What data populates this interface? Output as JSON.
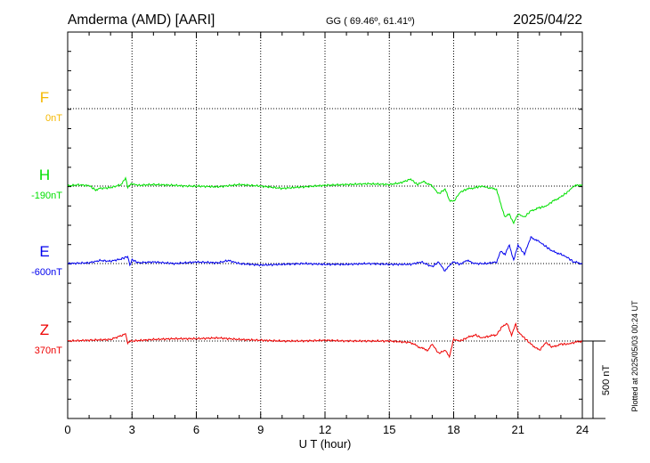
{
  "header": {
    "station": "Amderma (AMD)  [AARI]",
    "coords": "GG ( 69.46º,  61.41º)",
    "date": "2025/04/22"
  },
  "footer": {
    "plotted": "Plotted at 2025/05/03 00:24 UT"
  },
  "colors": {
    "F": "#f5b800",
    "H": "#00e000",
    "E": "#0000ee",
    "Z": "#ee0000",
    "axis": "#000000"
  },
  "chart_data": {
    "type": "line",
    "xlabel": "U T (hour)",
    "xlim": [
      0,
      24
    ],
    "x_ticks": [
      "0",
      "3",
      "6",
      "9",
      "12",
      "15",
      "18",
      "21",
      "24"
    ],
    "scale_bar": {
      "value": 500,
      "label": "500 nT"
    },
    "series": [
      {
        "name": "F",
        "baseline_label": "0nT",
        "color": "#f5b800",
        "x": [],
        "y": []
      },
      {
        "name": "H",
        "baseline_label": "-190nT",
        "color": "#00e000",
        "x": [
          0,
          0.5,
          1,
          1.3,
          1.5,
          2,
          2.5,
          2.7,
          2.8,
          3,
          3.3,
          4,
          5,
          5.5,
          6,
          7,
          8,
          9,
          10,
          11,
          12,
          13,
          14,
          15,
          15.5,
          16,
          16.3,
          16.6,
          17,
          17.3,
          17.6,
          17.8,
          18,
          18.3,
          18.6,
          19,
          19.3,
          19.6,
          20,
          20.2,
          20.4,
          20.6,
          20.8,
          21,
          21.3,
          21.6,
          22,
          22.3,
          22.6,
          23,
          23.3,
          23.6,
          24
        ],
        "y": [
          2,
          8,
          3,
          -25,
          -15,
          -10,
          10,
          50,
          -5,
          15,
          5,
          10,
          5,
          0,
          0,
          -5,
          10,
          0,
          -15,
          -5,
          5,
          10,
          15,
          10,
          20,
          45,
          10,
          30,
          0,
          -50,
          -20,
          -90,
          -100,
          -40,
          -20,
          -10,
          0,
          -10,
          -20,
          -120,
          -200,
          -180,
          -240,
          -180,
          -200,
          -160,
          -140,
          -130,
          -100,
          -70,
          -40,
          0,
          10
        ]
      },
      {
        "name": "E",
        "baseline_label": "-600nT",
        "color": "#0000ee",
        "x": [
          0,
          1,
          1.5,
          2,
          2.5,
          2.8,
          2.9,
          3,
          3.3,
          4,
          5,
          6,
          7,
          7.5,
          8,
          9,
          10,
          11,
          12,
          13,
          14,
          15,
          16,
          16.5,
          17,
          17.3,
          17.6,
          17.8,
          18,
          18.3,
          18.6,
          19,
          19.5,
          20,
          20.2,
          20.4,
          20.6,
          20.8,
          21,
          21.3,
          21.6,
          22,
          22.3,
          22.6,
          23,
          23.3,
          23.6,
          24
        ],
        "y": [
          0,
          5,
          20,
          15,
          30,
          45,
          -10,
          25,
          5,
          10,
          0,
          10,
          5,
          20,
          0,
          -10,
          -5,
          0,
          -5,
          -5,
          0,
          -5,
          -5,
          10,
          -20,
          10,
          -50,
          -10,
          10,
          -5,
          20,
          0,
          0,
          10,
          80,
          60,
          120,
          20,
          120,
          60,
          170,
          140,
          110,
          80,
          60,
          40,
          10,
          0
        ]
      },
      {
        "name": "Z",
        "baseline_label": "370nT",
        "color": "#ee0000",
        "x": [
          0,
          1,
          2,
          2.7,
          2.8,
          3,
          3.5,
          4,
          5,
          6,
          7,
          8,
          9,
          10,
          11,
          12,
          13,
          14,
          15,
          16,
          16.4,
          16.8,
          17,
          17.3,
          17.6,
          17.8,
          18,
          18.3,
          18.6,
          19,
          19.3,
          19.6,
          20,
          20.3,
          20.5,
          20.7,
          20.9,
          21,
          21.3,
          21.6,
          22,
          22.3,
          22.6,
          23,
          23.3,
          23.6,
          24
        ],
        "y": [
          0,
          5,
          10,
          45,
          -10,
          0,
          5,
          10,
          15,
          15,
          20,
          10,
          5,
          0,
          0,
          5,
          0,
          0,
          0,
          -10,
          -40,
          -60,
          -20,
          -80,
          -60,
          -100,
          10,
          0,
          20,
          40,
          20,
          30,
          40,
          100,
          110,
          40,
          110,
          60,
          20,
          -20,
          -60,
          -10,
          -40,
          -20,
          -20,
          -10,
          0
        ]
      }
    ]
  }
}
